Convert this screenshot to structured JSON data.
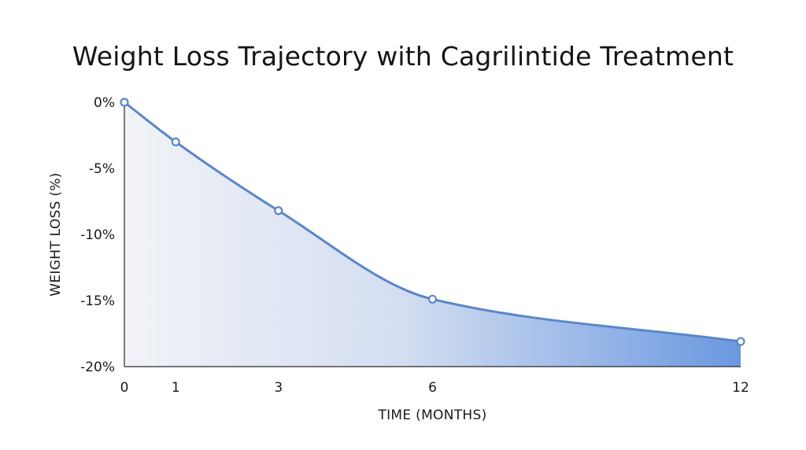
{
  "chart_data": {
    "type": "area",
    "title": "Weight Loss Trajectory with Cagrilintide Treatment",
    "xlabel": "TIME (MONTHS)",
    "ylabel": "WEIGHT LOSS (%)",
    "x": [
      0,
      1,
      3,
      6,
      12
    ],
    "values": [
      0,
      -3,
      -8.2,
      -14.9,
      -18.1
    ],
    "x_ticks": [
      "0",
      "1",
      "3",
      "6",
      "12"
    ],
    "y_ticks": [
      {
        "value": 0,
        "label": "0%"
      },
      {
        "value": -5,
        "label": "-5%"
      },
      {
        "value": -10,
        "label": "-10%"
      },
      {
        "value": -15,
        "label": "-15%"
      },
      {
        "value": -20,
        "label": "-20%"
      }
    ],
    "ylim": [
      -20,
      0
    ],
    "grid": false,
    "line_color": "#5b86c9",
    "fill_light": "#f1f3f7",
    "fill_dark": "#6a98e0"
  }
}
